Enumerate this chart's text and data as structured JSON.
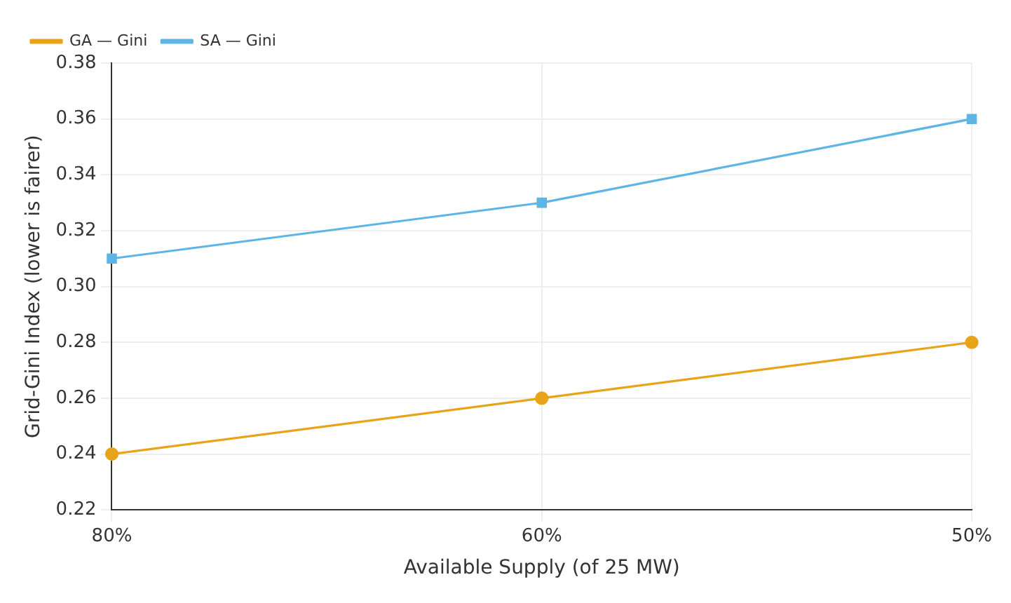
{
  "chart_data": {
    "type": "line",
    "xlabel": "Available Supply (of 25 MW)",
    "ylabel": "Grid-Gini Index (lower is fairer)",
    "categories": [
      "80%",
      "60%",
      "50%"
    ],
    "series": [
      {
        "name": "GA — Gini",
        "color": "#e8a419",
        "marker": "circle",
        "values": [
          0.24,
          0.26,
          0.28
        ]
      },
      {
        "name": "SA — Gini",
        "color": "#5db5e6",
        "marker": "square",
        "values": [
          0.31,
          0.33,
          0.36
        ]
      }
    ],
    "ylim": [
      0.22,
      0.38
    ],
    "yticks": [
      0.22,
      0.24,
      0.26,
      0.28,
      {
        "value": 0.3,
        "label": "0.30"
      },
      0.32,
      0.34,
      0.36,
      0.38
    ],
    "grid": true,
    "legend": "top left",
    "line_style": "solid"
  }
}
